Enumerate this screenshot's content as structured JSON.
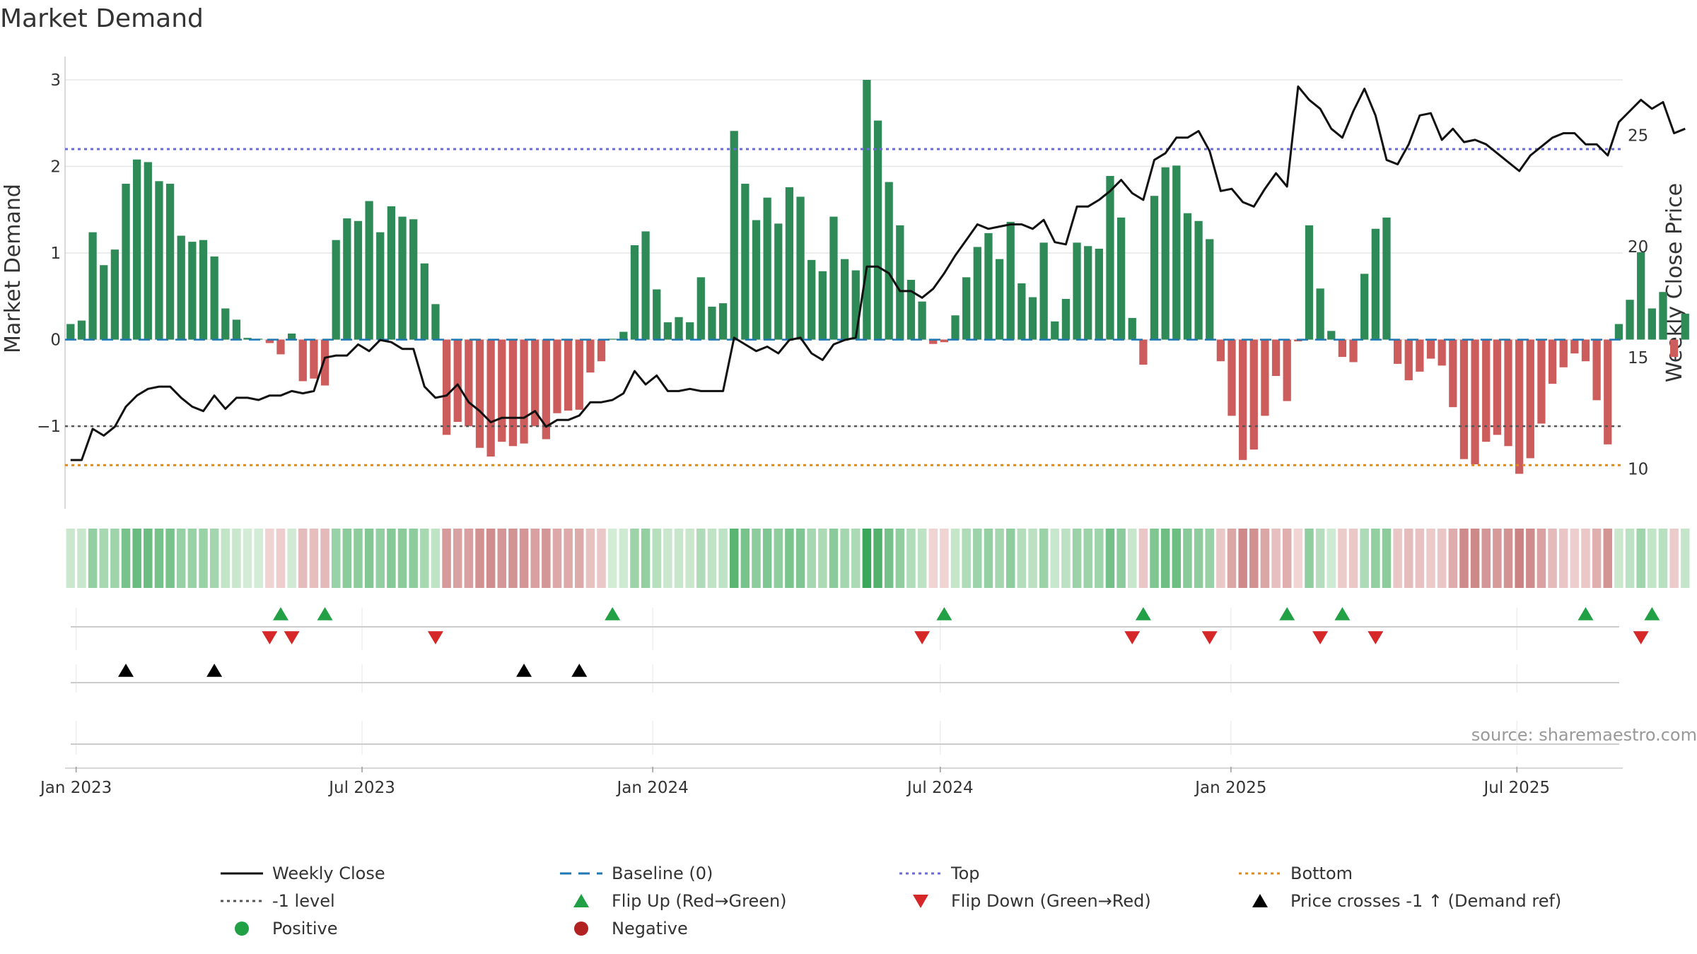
{
  "chart_data": {
    "type": "bar",
    "title": "Market Demand",
    "ylabel": "Market Demand",
    "y2label": "Weekly Close Price",
    "ylim": [
      -1.75,
      3.0
    ],
    "y2lim": [
      9.0,
      27.5
    ],
    "yticks": [
      -1,
      0,
      1,
      2,
      3
    ],
    "y2ticks": [
      10,
      15,
      20,
      25
    ],
    "x_start": "2022-12-25",
    "x_end": "2025-09-06",
    "xticks": [
      {
        "date": "2023-01-01",
        "label": "Jan 2023"
      },
      {
        "date": "2023-07-01",
        "label": "Jul 2023"
      },
      {
        "date": "2024-01-01",
        "label": "Jan 2024"
      },
      {
        "date": "2024-07-01",
        "label": "Jul 2024"
      },
      {
        "date": "2025-01-01",
        "label": "Jan 2025"
      },
      {
        "date": "2025-07-01",
        "label": "Jul 2025"
      }
    ],
    "week_start": "2022-12-25",
    "grid": true,
    "top_level": 2.2,
    "bottom_level": -1.45,
    "minus_one_level": -1,
    "baseline": 0,
    "demand_values": [
      0.18,
      0.22,
      1.24,
      0.86,
      1.04,
      1.8,
      2.08,
      2.05,
      1.83,
      1.8,
      1.2,
      1.13,
      1.15,
      0.96,
      0.36,
      0.23,
      0.02,
      0.01,
      -0.04,
      -0.17,
      0.07,
      -0.48,
      -0.45,
      -0.53,
      1.15,
      1.4,
      1.37,
      1.6,
      1.24,
      1.54,
      1.42,
      1.39,
      0.88,
      0.41,
      -1.1,
      -0.95,
      -1.0,
      -1.25,
      -1.35,
      -1.18,
      -1.23,
      -1.2,
      -1.0,
      -1.15,
      -0.85,
      -0.82,
      -0.81,
      -0.38,
      -0.25,
      0.01,
      0.09,
      1.09,
      1.25,
      0.58,
      0.2,
      0.26,
      0.2,
      0.72,
      0.38,
      0.42,
      2.41,
      1.8,
      1.38,
      1.64,
      1.34,
      1.76,
      1.65,
      0.92,
      0.79,
      1.42,
      0.93,
      0.8,
      3.0,
      2.53,
      1.82,
      1.32,
      0.69,
      0.44,
      -0.05,
      -0.03,
      0.28,
      0.72,
      1.07,
      1.23,
      0.93,
      1.36,
      0.65,
      0.49,
      1.12,
      0.21,
      0.47,
      1.12,
      1.08,
      1.05,
      1.89,
      1.41,
      0.25,
      -0.29,
      1.66,
      1.99,
      2.01,
      1.46,
      1.37,
      1.16,
      -0.25,
      -0.88,
      -1.39,
      -1.27,
      -0.88,
      -0.42,
      -0.71,
      -0.02,
      1.32,
      0.59,
      0.1,
      -0.2,
      -0.26,
      0.76,
      1.28,
      1.41,
      -0.28,
      -0.47,
      -0.37,
      -0.22,
      -0.3,
      -0.78,
      -1.38,
      -1.44,
      -1.18,
      -1.1,
      -1.23,
      -1.55,
      -1.37,
      -0.97,
      -0.51,
      -0.32,
      -0.16,
      -0.25,
      -0.7,
      -1.21,
      0.18,
      0.46,
      1.01,
      0.36,
      0.55,
      -0.2,
      0.3
    ],
    "price_values": [
      10.4,
      10.4,
      11.8,
      11.5,
      11.9,
      12.8,
      13.3,
      13.6,
      13.7,
      13.7,
      13.2,
      12.8,
      12.6,
      13.3,
      12.7,
      13.2,
      13.2,
      13.1,
      13.3,
      13.3,
      13.5,
      13.4,
      13.5,
      15.0,
      15.1,
      15.1,
      15.6,
      15.3,
      15.8,
      15.7,
      15.4,
      15.4,
      13.7,
      13.2,
      13.3,
      13.8,
      13.0,
      12.6,
      12.1,
      12.3,
      12.3,
      12.3,
      12.6,
      11.9,
      12.2,
      12.2,
      12.4,
      13.0,
      13.0,
      13.1,
      13.4,
      14.4,
      13.8,
      14.2,
      13.5,
      13.5,
      13.6,
      13.5,
      13.5,
      13.5,
      15.9,
      15.6,
      15.3,
      15.5,
      15.2,
      15.8,
      15.9,
      15.2,
      14.9,
      15.6,
      15.8,
      15.9,
      19.1,
      19.1,
      18.8,
      18.0,
      18.0,
      17.7,
      18.1,
      18.8,
      19.6,
      20.3,
      21.0,
      20.8,
      20.9,
      21.0,
      21.0,
      20.8,
      21.2,
      20.2,
      20.1,
      21.8,
      21.8,
      22.1,
      22.5,
      23.0,
      22.4,
      22.1,
      23.9,
      24.2,
      24.9,
      24.9,
      25.2,
      24.3,
      22.5,
      22.6,
      22.0,
      21.8,
      22.6,
      23.3,
      22.7,
      27.2,
      26.6,
      26.2,
      25.3,
      24.9,
      26.1,
      27.1,
      25.9,
      23.9,
      23.7,
      24.6,
      25.9,
      26.0,
      24.8,
      25.3,
      24.7,
      24.8,
      24.6,
      24.2,
      23.8,
      23.4,
      24.1,
      24.5,
      24.9,
      25.1,
      25.1,
      24.6,
      24.6,
      24.1,
      25.6,
      26.1,
      26.6,
      26.2,
      26.5,
      25.1,
      25.3
    ],
    "flip_up_weeks": [
      19,
      23,
      49,
      79,
      97,
      110,
      115,
      137,
      143
    ],
    "flip_down_weeks": [
      18,
      20,
      33,
      77,
      96,
      103,
      113,
      118,
      142
    ],
    "price_cross_weeks": [
      5,
      13,
      41,
      46
    ],
    "legend_placement": "bottom",
    "legend": [
      {
        "label": "Weekly Close",
        "kind": "line-solid",
        "color": "#111111"
      },
      {
        "label": "Baseline (0)",
        "kind": "line-dashed",
        "color": "#1f77b4"
      },
      {
        "label": "Top",
        "kind": "line-dotted",
        "color": "#6a6ad8"
      },
      {
        "label": "Bottom",
        "kind": "line-dotted",
        "color": "#e08a1e"
      },
      {
        "label": "-1 level",
        "kind": "line-dotted",
        "color": "#555555"
      },
      {
        "label": "Flip Up (Red→Green)",
        "kind": "triangle-up",
        "color": "#22a045"
      },
      {
        "label": "Flip Down (Green→Red)",
        "kind": "triangle-down",
        "color": "#d62728"
      },
      {
        "label": "Price crosses -1 ↑ (Demand ref)",
        "kind": "triangle-up",
        "color": "#000000"
      },
      {
        "label": "Positive",
        "kind": "dot",
        "color": "#22a045"
      },
      {
        "label": "Negative",
        "kind": "dot",
        "color": "#b22222"
      }
    ]
  },
  "colors": {
    "positive_bar": "#2e8b57",
    "negative_bar": "#cd5c5c",
    "price_line": "#111111",
    "baseline": "#1f77b4",
    "top": "#6a6ad8",
    "bottom": "#e08a1e",
    "minus_one": "#555555",
    "grid": "#e6e6e6"
  },
  "source": "source: sharemaestro.com"
}
